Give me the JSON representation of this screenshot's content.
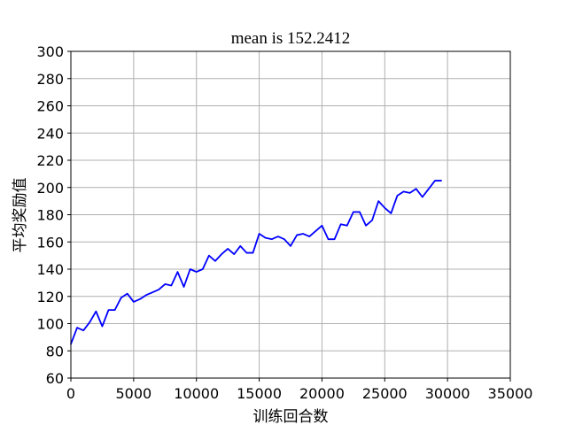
{
  "chart_data": {
    "type": "line",
    "title": "mean is 152.2412",
    "xlabel": "训练回合数",
    "ylabel": "平均奖励值",
    "xlim": [
      0,
      35000
    ],
    "ylim": [
      60,
      300
    ],
    "xticks": [
      0,
      5000,
      10000,
      15000,
      20000,
      25000,
      30000,
      35000
    ],
    "yticks": [
      60,
      80,
      100,
      120,
      140,
      160,
      180,
      200,
      220,
      240,
      260,
      280,
      300
    ],
    "grid": true,
    "series": [
      {
        "color": "#0000ff",
        "x": [
          0,
          500,
          1000,
          1500,
          2000,
          2500,
          3000,
          3500,
          4000,
          4500,
          5000,
          5500,
          6000,
          6500,
          7000,
          7500,
          8000,
          8500,
          9000,
          9500,
          10000,
          10500,
          11000,
          11500,
          12000,
          12500,
          13000,
          13500,
          14000,
          14500,
          15000,
          15500,
          16000,
          16500,
          17000,
          17500,
          18000,
          18500,
          19000,
          19500,
          20000,
          20500,
          21000,
          21500,
          22000,
          22500,
          23000,
          23500,
          24000,
          24500,
          25000,
          25500,
          26000,
          26500,
          27000,
          27500,
          28000,
          28500,
          29000,
          29500
        ],
        "y": [
          85,
          97,
          95,
          101,
          109,
          98,
          110,
          110,
          119,
          122,
          116,
          118,
          121,
          123,
          125,
          129,
          128,
          138,
          127,
          140,
          138,
          140,
          150,
          146,
          151,
          155,
          151,
          157,
          152,
          152,
          166,
          163,
          162,
          164,
          162,
          157,
          165,
          166,
          164,
          168,
          172,
          162,
          162,
          173,
          172,
          182,
          182,
          172,
          176,
          190,
          185,
          181,
          194,
          197,
          196,
          199,
          193,
          199,
          205,
          205
        ]
      }
    ]
  }
}
